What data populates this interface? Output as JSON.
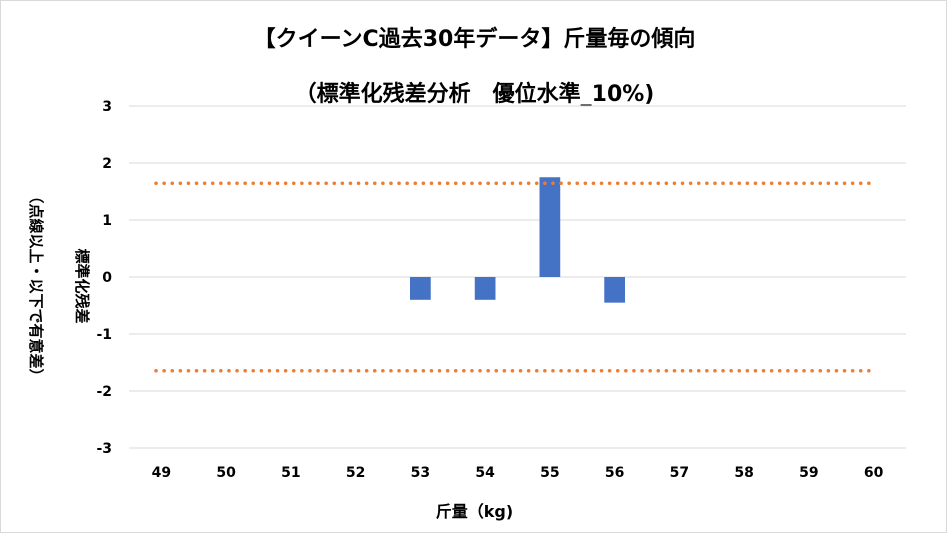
{
  "chart_data": {
    "type": "bar",
    "title_line1": "【クイーンC過去30年データ】斤量毎の傾向",
    "title_line2": "（標準化残差分析　優位水準_10%)",
    "ylabel_line1": "標準化残差",
    "ylabel_line2": "（点線以上・以下で有意差）",
    "xlabel": "斤量（kg)",
    "categories": [
      "49",
      "50",
      "51",
      "52",
      "53",
      "54",
      "55",
      "56",
      "57",
      "58",
      "59",
      "60"
    ],
    "values": [
      null,
      null,
      null,
      null,
      -0.4,
      -0.4,
      1.75,
      -0.45,
      null,
      null,
      null,
      null
    ],
    "ylim": [
      -3,
      3
    ],
    "yticks": [
      "3",
      "2",
      "1",
      "0",
      "-1",
      "-2",
      "-3"
    ],
    "threshold_lines": [
      1.645,
      -1.645
    ],
    "bar_color": "#4472c4",
    "threshold_color": "#ed7d31",
    "grid": true,
    "legend": "none"
  }
}
